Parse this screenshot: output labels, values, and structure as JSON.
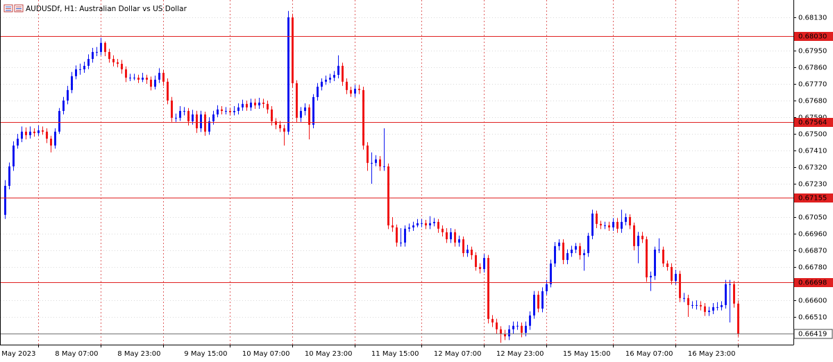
{
  "chart_data": {
    "type": "candlestick",
    "title": "AUDUSDf, H1:  Australian Dollar vs US Dollar",
    "up_color": "#0a14f0",
    "down_color": "#f01414",
    "level_color": "#e02020",
    "ylim": [
      0.6636,
      0.68224
    ],
    "yticks": [
      {
        "value": 0.6813,
        "label": "0.68130"
      },
      {
        "value": 0.6795,
        "label": "0.67950"
      },
      {
        "value": 0.6786,
        "label": "0.67860"
      },
      {
        "value": 0.6777,
        "label": "0.67770"
      },
      {
        "value": 0.6768,
        "label": "0.67680"
      },
      {
        "value": 0.6759,
        "label": "0.67590"
      },
      {
        "value": 0.675,
        "label": "0.67500"
      },
      {
        "value": 0.6741,
        "label": "0.67410"
      },
      {
        "value": 0.6732,
        "label": "0.67320"
      },
      {
        "value": 0.6723,
        "label": "0.67230"
      },
      {
        "value": 0.6705,
        "label": "0.67050"
      },
      {
        "value": 0.6696,
        "label": "0.66960"
      },
      {
        "value": 0.6687,
        "label": "0.66870"
      },
      {
        "value": 0.6678,
        "label": "0.66780"
      },
      {
        "value": 0.666,
        "label": "0.66600"
      },
      {
        "value": 0.6651,
        "label": "0.66510"
      }
    ],
    "xticks": [
      {
        "value": 8,
        "label": "5 May 2023"
      },
      {
        "value": 23,
        "label": "8 May 07:00"
      },
      {
        "value": 38,
        "label": "8 May 23:00"
      },
      {
        "value": 54,
        "label": "9 May 15:00"
      },
      {
        "value": 69,
        "label": "10 May 07:00"
      },
      {
        "value": 84,
        "label": "10 May 23:00"
      },
      {
        "value": 100,
        "label": "11 May 15:00"
      },
      {
        "value": 115,
        "label": "12 May 07:00"
      },
      {
        "value": 130,
        "label": "12 May 23:00"
      },
      {
        "value": 146,
        "label": "15 May 15:00"
      },
      {
        "value": 161,
        "label": "16 May 07:00"
      },
      {
        "value": 176,
        "label": "16 May 23:00"
      }
    ],
    "levels": [
      {
        "value": 0.6803,
        "label": "0.68030"
      },
      {
        "value": 0.67564,
        "label": "0.67564"
      },
      {
        "value": 0.67155,
        "label": "0.67155"
      },
      {
        "value": 0.66698,
        "label": "0.66698"
      }
    ],
    "current_price": {
      "value": 0.66419,
      "label": "0.66419"
    },
    "open": [
      0.67062,
      0.67219,
      0.67324,
      0.67437,
      0.67474,
      0.67512,
      0.67493,
      0.67512,
      0.67504,
      0.67519,
      0.67512,
      0.67474,
      0.67437,
      0.67512,
      0.67624,
      0.6768,
      0.67737,
      0.67812,
      0.67849,
      0.67849,
      0.67868,
      0.67905,
      0.67943,
      0.67943,
      0.67992,
      0.67943,
      0.67905,
      0.67887,
      0.67879,
      0.67849,
      0.67804,
      0.67804,
      0.67804,
      0.67793,
      0.67804,
      0.67793,
      0.67755,
      0.67793,
      0.6783,
      0.67782,
      0.6768,
      0.67587,
      0.67587,
      0.67624,
      0.67624,
      0.67568,
      0.67605,
      0.6753,
      0.67605,
      0.67512,
      0.67568,
      0.67605,
      0.67632,
      0.67624,
      0.67624,
      0.67617,
      0.67624,
      0.67643,
      0.67662,
      0.67643,
      0.67669,
      0.67654,
      0.67669,
      0.67662,
      0.67632,
      0.67568,
      0.67549,
      0.6753,
      0.67512,
      0.6813,
      0.67774,
      0.67587,
      0.67624,
      0.67643,
      0.67549,
      0.67699,
      0.67755,
      0.67782,
      0.67793,
      0.67804,
      0.67819,
      0.67868,
      0.67782,
      0.67737,
      0.67718,
      0.67744,
      0.67737,
      0.67437,
      0.67343,
      0.67343,
      0.67362,
      0.67324,
      0.67324,
      0.67005,
      0.66994,
      0.66912,
      0.66912,
      0.66987,
      0.66994,
      0.67005,
      0.67017,
      0.67017,
      0.67005,
      0.67017,
      0.67024,
      0.66987,
      0.66968,
      0.6693,
      0.66968,
      0.66912,
      0.6693,
      0.66855,
      0.66874,
      0.66844,
      0.6678,
      0.66769,
      0.66829,
      0.66499,
      0.6648,
      0.66443,
      0.66417,
      0.66405,
      0.66443,
      0.66462,
      0.66462,
      0.66424,
      0.66462,
      0.66518,
      0.6663,
      0.66555,
      0.66649,
      0.66687,
      0.66799,
      0.66893,
      0.66912,
      0.66818,
      0.66855,
      0.66874,
      0.66893,
      0.66844,
      0.66855,
      0.66949,
      0.67069,
      0.67013,
      0.67005,
      0.67005,
      0.66994,
      0.67024,
      0.66987,
      0.67024,
      0.6705,
      0.67005,
      0.66893,
      0.66949,
      0.6693,
      0.66724,
      0.66732,
      0.66874,
      0.66874,
      0.66799,
      0.6678,
      0.66705,
      0.66743,
      0.66612,
      0.66612,
      0.66574,
      0.66574,
      0.66574,
      0.66567,
      0.66537,
      0.66544,
      0.66563,
      0.66563,
      0.66574,
      0.66687,
      0.66687,
      0.66582
    ],
    "high": [
      0.6725,
      0.67345,
      0.6746,
      0.675,
      0.6754,
      0.67535,
      0.6754,
      0.6753,
      0.67545,
      0.6754,
      0.6753,
      0.6749,
      0.6753,
      0.6764,
      0.677,
      0.6776,
      0.67835,
      0.6787,
      0.6788,
      0.6789,
      0.6793,
      0.67965,
      0.6797,
      0.6802,
      0.68,
      0.6796,
      0.67925,
      0.67905,
      0.679,
      0.67865,
      0.67825,
      0.67825,
      0.6782,
      0.6783,
      0.6782,
      0.6781,
      0.67815,
      0.67855,
      0.67845,
      0.678,
      0.677,
      0.6761,
      0.6765,
      0.67645,
      0.6764,
      0.6763,
      0.67625,
      0.67625,
      0.6762,
      0.6759,
      0.67625,
      0.67655,
      0.6765,
      0.67645,
      0.6764,
      0.6765,
      0.67665,
      0.67685,
      0.6768,
      0.6769,
      0.6769,
      0.67695,
      0.6769,
      0.6768,
      0.6765,
      0.67585,
      0.6757,
      0.6755,
      0.68165,
      0.6815,
      0.6779,
      0.67645,
      0.67665,
      0.6766,
      0.67715,
      0.67775,
      0.678,
      0.67815,
      0.67825,
      0.6784,
      0.67925,
      0.67885,
      0.678,
      0.67755,
      0.67765,
      0.67765,
      0.67755,
      0.67455,
      0.674,
      0.67385,
      0.6738,
      0.6753,
      0.6734,
      0.6705,
      0.6701,
      0.6699,
      0.67005,
      0.67015,
      0.67025,
      0.6704,
      0.6704,
      0.67035,
      0.67055,
      0.67045,
      0.6704,
      0.67005,
      0.6699,
      0.6699,
      0.66985,
      0.6695,
      0.66945,
      0.669,
      0.6689,
      0.6686,
      0.668,
      0.6685,
      0.66845,
      0.6652,
      0.665,
      0.6646,
      0.6644,
      0.66465,
      0.66485,
      0.66485,
      0.6648,
      0.66485,
      0.6654,
      0.6665,
      0.6665,
      0.6667,
      0.6671,
      0.6682,
      0.66915,
      0.6693,
      0.6693,
      0.66875,
      0.66895,
      0.6691,
      0.6691,
      0.66875,
      0.66965,
      0.6709,
      0.67085,
      0.6703,
      0.67025,
      0.67025,
      0.67045,
      0.67045,
      0.6709,
      0.6707,
      0.67065,
      0.6702,
      0.6697,
      0.6697,
      0.66945,
      0.66755,
      0.6689,
      0.66935,
      0.6689,
      0.66815,
      0.668,
      0.66765,
      0.6676,
      0.6664,
      0.6663,
      0.66595,
      0.666,
      0.66595,
      0.66585,
      0.66565,
      0.66585,
      0.6659,
      0.66595,
      0.6671,
      0.6671,
      0.66705,
      0.666
    ],
    "low": [
      0.6704,
      0.672,
      0.673,
      0.6742,
      0.67455,
      0.6747,
      0.67475,
      0.67485,
      0.6749,
      0.67495,
      0.6745,
      0.674,
      0.6742,
      0.675,
      0.67605,
      0.6766,
      0.6772,
      0.67795,
      0.6782,
      0.6783,
      0.6785,
      0.67885,
      0.6792,
      0.67925,
      0.6792,
      0.67885,
      0.67865,
      0.6786,
      0.67825,
      0.6778,
      0.67785,
      0.6779,
      0.67775,
      0.6778,
      0.6777,
      0.67735,
      0.6774,
      0.67775,
      0.6776,
      0.6766,
      0.67565,
      0.67565,
      0.6757,
      0.676,
      0.67545,
      0.6755,
      0.67505,
      0.6751,
      0.6749,
      0.67495,
      0.6755,
      0.6759,
      0.67605,
      0.67605,
      0.676,
      0.676,
      0.67605,
      0.67625,
      0.67625,
      0.67625,
      0.67635,
      0.67635,
      0.6764,
      0.6761,
      0.67545,
      0.67525,
      0.6751,
      0.67437,
      0.67495,
      0.6775,
      0.6756,
      0.67565,
      0.676,
      0.6747,
      0.6753,
      0.6768,
      0.67735,
      0.67765,
      0.67775,
      0.67785,
      0.678,
      0.6776,
      0.67715,
      0.677,
      0.677,
      0.67715,
      0.67415,
      0.673,
      0.6723,
      0.67325,
      0.673,
      0.673,
      0.66985,
      0.6697,
      0.6689,
      0.6689,
      0.6689,
      0.6697,
      0.66975,
      0.66995,
      0.66995,
      0.66985,
      0.66985,
      0.67,
      0.66965,
      0.66945,
      0.6691,
      0.6691,
      0.6689,
      0.6689,
      0.66835,
      0.66835,
      0.6682,
      0.6676,
      0.66745,
      0.6675,
      0.66475,
      0.66455,
      0.6642,
      0.6637,
      0.66385,
      0.66385,
      0.6642,
      0.6644,
      0.664,
      0.66405,
      0.6644,
      0.665,
      0.66535,
      0.66535,
      0.6663,
      0.6667,
      0.6678,
      0.6687,
      0.66795,
      0.66795,
      0.66835,
      0.66855,
      0.6682,
      0.6676,
      0.66835,
      0.6693,
      0.6699,
      0.66985,
      0.66985,
      0.66975,
      0.66975,
      0.66965,
      0.66965,
      0.67005,
      0.66985,
      0.6687,
      0.668,
      0.6691,
      0.667,
      0.6665,
      0.6671,
      0.66855,
      0.6678,
      0.6676,
      0.66685,
      0.66685,
      0.6659,
      0.6659,
      0.6651,
      0.66555,
      0.6655,
      0.66545,
      0.66515,
      0.66515,
      0.66525,
      0.66545,
      0.66545,
      0.66555,
      0.6648,
      0.6656,
      0.66405
    ],
    "close": [
      0.67219,
      0.67324,
      0.67437,
      0.67474,
      0.67512,
      0.67493,
      0.67512,
      0.67504,
      0.67519,
      0.67512,
      0.67474,
      0.67437,
      0.67512,
      0.67624,
      0.6768,
      0.67737,
      0.67812,
      0.67849,
      0.67849,
      0.67868,
      0.67905,
      0.67943,
      0.67943,
      0.67992,
      0.67943,
      0.67905,
      0.67887,
      0.67879,
      0.67849,
      0.67804,
      0.67804,
      0.67804,
      0.67793,
      0.67804,
      0.67793,
      0.67755,
      0.67793,
      0.6783,
      0.67782,
      0.6768,
      0.67587,
      0.67587,
      0.67624,
      0.67624,
      0.67568,
      0.67605,
      0.6753,
      0.67605,
      0.67512,
      0.67568,
      0.67605,
      0.67632,
      0.67624,
      0.67624,
      0.67617,
      0.67624,
      0.67643,
      0.67662,
      0.67643,
      0.67669,
      0.67654,
      0.67669,
      0.67662,
      0.67632,
      0.67568,
      0.67549,
      0.6753,
      0.67512,
      0.6813,
      0.67774,
      0.67587,
      0.67624,
      0.67643,
      0.67549,
      0.67699,
      0.67755,
      0.67782,
      0.67793,
      0.67804,
      0.67819,
      0.67868,
      0.67782,
      0.67737,
      0.67718,
      0.67744,
      0.67737,
      0.67437,
      0.67343,
      0.67343,
      0.67362,
      0.67324,
      0.67324,
      0.67005,
      0.66994,
      0.66912,
      0.66912,
      0.66987,
      0.66994,
      0.67005,
      0.67017,
      0.67017,
      0.67005,
      0.67017,
      0.67024,
      0.66987,
      0.66968,
      0.6693,
      0.66968,
      0.66912,
      0.6693,
      0.66855,
      0.66874,
      0.66844,
      0.6678,
      0.66769,
      0.66829,
      0.66499,
      0.6648,
      0.66443,
      0.66417,
      0.66405,
      0.66443,
      0.66462,
      0.66462,
      0.66424,
      0.66462,
      0.66518,
      0.6663,
      0.66555,
      0.66649,
      0.66687,
      0.66799,
      0.66893,
      0.66912,
      0.66818,
      0.66855,
      0.66874,
      0.66893,
      0.66844,
      0.66855,
      0.66949,
      0.67069,
      0.67013,
      0.67005,
      0.67005,
      0.66994,
      0.67024,
      0.66987,
      0.67024,
      0.6705,
      0.67005,
      0.66893,
      0.66949,
      0.6693,
      0.66724,
      0.66732,
      0.66874,
      0.66874,
      0.66799,
      0.6678,
      0.66705,
      0.66743,
      0.66612,
      0.66612,
      0.66574,
      0.66574,
      0.66574,
      0.66567,
      0.66537,
      0.66544,
      0.66563,
      0.66563,
      0.66574,
      0.66687,
      0.66687,
      0.66582,
      0.66419
    ]
  }
}
